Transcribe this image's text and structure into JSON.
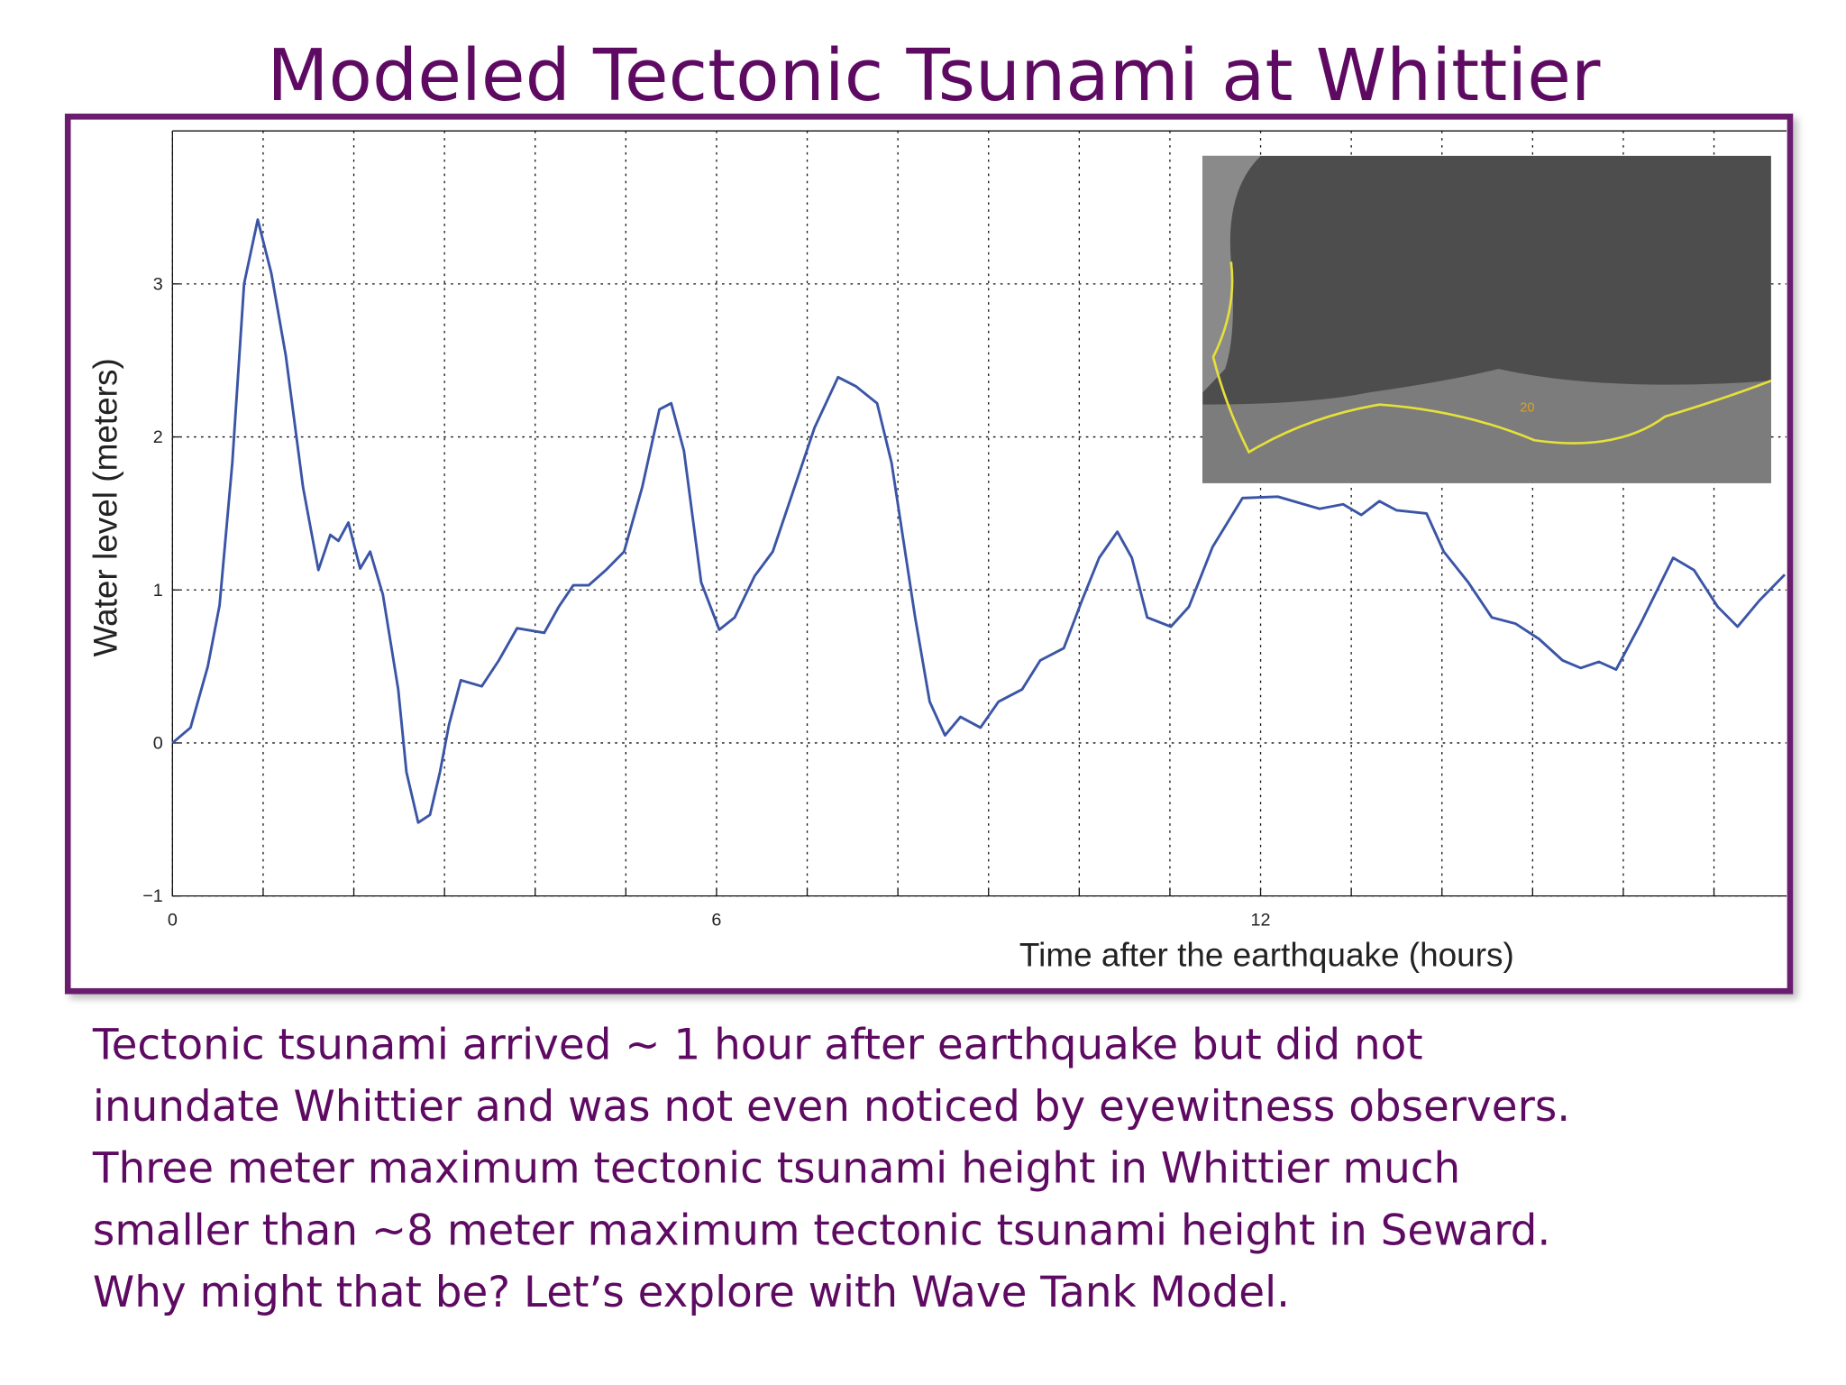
{
  "slide": {
    "title": "Modeled Tectonic Tsunami at Whittier",
    "text": [
      "Tectonic tsunami arrived ~ 1 hour after earthquake but did not",
      "inundate Whittier and was not even noticed by eyewitness observers.",
      "Three meter maximum tectonic tsunami height in Whittier much",
      "smaller than ~8 meter maximum tectonic tsunami height in Seward.",
      "Why might that be?  Let’s explore with Wave Tank Model."
    ],
    "inset_label": "20"
  },
  "chart_data": {
    "type": "line",
    "x_label": "Time after the earthquake (hours)",
    "y_label": "Water level (meters)",
    "xlim": [
      0,
      17.8
    ],
    "ylim": [
      -1,
      4
    ],
    "xticks": [
      0,
      6,
      12
    ],
    "xgrid": [
      1,
      2,
      3,
      4,
      5,
      7,
      8,
      9,
      10,
      11,
      13,
      14,
      15,
      16,
      17
    ],
    "yticks": [
      {
        "value": -1,
        "label": "−1"
      },
      0,
      1,
      2,
      3
    ],
    "grid": true,
    "series": [
      {
        "color": "#3b55a6",
        "x": [
          0,
          0.2,
          0.39,
          0.52,
          0.66,
          0.79,
          0.94,
          1.09,
          1.25,
          1.44,
          1.61,
          1.74,
          1.83,
          1.94,
          2.07,
          2.18,
          2.32,
          2.49,
          2.58,
          2.71,
          2.84,
          2.95,
          3.05,
          3.18,
          3.41,
          3.6,
          3.8,
          4.1,
          4.26,
          4.42,
          4.59,
          4.78,
          4.98,
          5.18,
          5.37,
          5.5,
          5.64,
          5.83,
          6.03,
          6.2,
          6.42,
          6.62,
          6.82,
          7.08,
          7.34,
          7.54,
          7.77,
          7.93,
          8.19,
          8.35,
          8.52,
          8.69,
          8.91,
          9.11,
          9.37,
          9.57,
          9.83,
          10.03,
          10.22,
          10.42,
          10.58,
          10.75,
          11.01,
          11.21,
          11.47,
          11.8,
          12.19,
          12.65,
          12.91,
          13.11,
          13.31,
          13.5,
          13.83,
          14.02,
          14.29,
          14.55,
          14.81,
          15.07,
          15.33,
          15.53,
          15.73,
          15.92,
          16.19,
          16.55,
          16.78,
          17.04,
          17.26,
          17.5,
          17.78
        ],
        "values": [
          0,
          0.1,
          0.5,
          0.9,
          1.83,
          3.0,
          3.42,
          3.07,
          2.53,
          1.67,
          1.13,
          1.36,
          1.32,
          1.44,
          1.14,
          1.25,
          0.97,
          0.35,
          -0.19,
          -0.52,
          -0.47,
          -0.19,
          0.12,
          0.41,
          0.37,
          0.54,
          0.75,
          0.72,
          0.89,
          1.03,
          1.03,
          1.13,
          1.25,
          1.67,
          2.18,
          2.22,
          1.91,
          1.05,
          0.74,
          0.82,
          1.09,
          1.25,
          1.6,
          2.06,
          2.39,
          2.33,
          2.22,
          1.83,
          0.82,
          0.27,
          0.05,
          0.17,
          0.1,
          0.27,
          0.35,
          0.54,
          0.62,
          0.93,
          1.21,
          1.38,
          1.21,
          0.82,
          0.76,
          0.89,
          1.28,
          1.6,
          1.61,
          1.53,
          1.56,
          1.49,
          1.58,
          1.52,
          1.5,
          1.25,
          1.05,
          0.82,
          0.78,
          0.68,
          0.54,
          0.49,
          0.53,
          0.48,
          0.78,
          1.21,
          1.13,
          0.89,
          0.76,
          0.93,
          1.1
        ]
      }
    ]
  }
}
